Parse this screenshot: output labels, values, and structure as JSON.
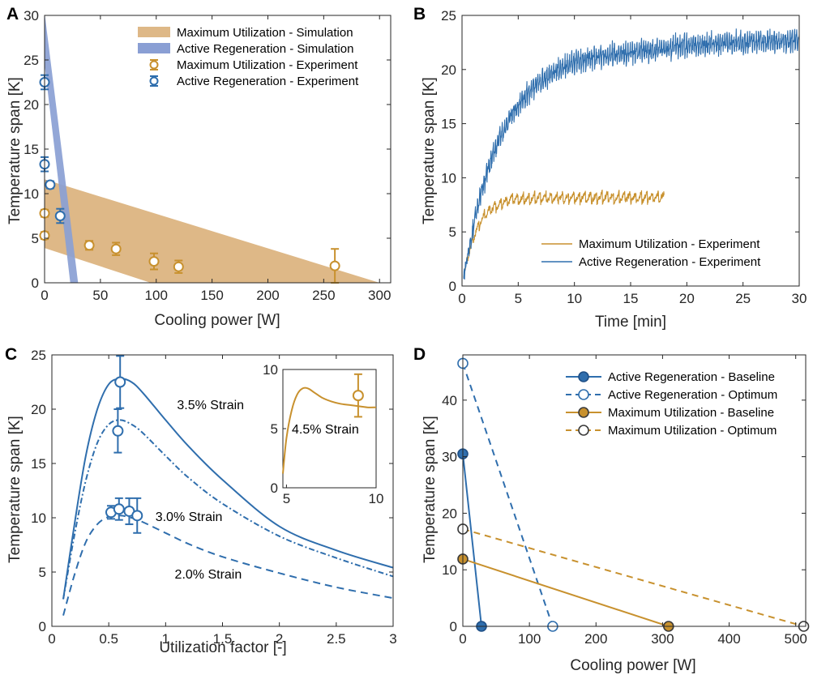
{
  "colors": {
    "blue": "#2f6ead",
    "orange": "#c8912e",
    "fill_orange": "#deb887",
    "fill_blue": "#8a9fd4",
    "dark_marker": "#3a3a3a"
  },
  "chart_data": [
    {
      "id": "A",
      "panel_label": "A",
      "type": "scatter",
      "xlabel": "Cooling power [W]",
      "ylabel": "Temperature span [K]",
      "xlim": [
        0,
        310
      ],
      "ylim": [
        0,
        30
      ],
      "xticks": [
        0,
        50,
        100,
        150,
        200,
        250,
        300
      ],
      "yticks": [
        0,
        5,
        10,
        15,
        20,
        25,
        30
      ],
      "bands": [
        {
          "name": "Maximum Utilization - Simulation",
          "color": "fill_orange",
          "polygon": [
            [
              0,
              11.6
            ],
            [
              0,
              3.9
            ],
            [
              95,
              0
            ],
            [
              300,
              0
            ]
          ]
        },
        {
          "name": "Active Regeneration - Simulation",
          "color": "fill_blue",
          "polygon": [
            [
              0,
              30.3
            ],
            [
              0,
              24.5
            ],
            [
              23,
              0
            ],
            [
              30,
              0
            ]
          ]
        }
      ],
      "series": [
        {
          "name": "Maximum Utilization - Experiment",
          "color": "orange",
          "points": [
            [
              0,
              7.8,
              0.4
            ],
            [
              0,
              5.3,
              0.4
            ],
            [
              40,
              4.2,
              0.5
            ],
            [
              64,
              3.8,
              0.7
            ],
            [
              98,
              2.4,
              0.9
            ],
            [
              120,
              1.8,
              0.7
            ],
            [
              260,
              1.9,
              1.9
            ]
          ]
        },
        {
          "name": "Active Regeneration - Experiment",
          "color": "blue",
          "points": [
            [
              0,
              22.5,
              0.8
            ],
            [
              0,
              13.3,
              0.8
            ],
            [
              5,
              11.0,
              0.4
            ],
            [
              14,
              7.5,
              0.8
            ]
          ]
        }
      ],
      "legend": [
        "Maximum Utilization - Simulation",
        "Active Regeneration - Simulation",
        "Maximum Utilization - Experiment",
        "Active Regeneration - Experiment"
      ],
      "legend_position": "top-right"
    },
    {
      "id": "B",
      "panel_label": "B",
      "type": "line",
      "xlabel": "Time [min]",
      "ylabel": "Temperature span [K]",
      "xlim": [
        0,
        30
      ],
      "ylim": [
        0,
        25
      ],
      "xticks": [
        0,
        5,
        10,
        15,
        20,
        25,
        30
      ],
      "yticks": [
        0,
        5,
        10,
        15,
        20,
        25
      ],
      "series": [
        {
          "name": "Maximum Utilization - Experiment",
          "color": "orange",
          "t_end": 18,
          "plateau": 8.2,
          "tau": 1.3,
          "osc_amp": 1.0,
          "osc_period": 0.5
        },
        {
          "name": "Active Regeneration - Experiment",
          "color": "blue",
          "t_end": 30,
          "plateau": 22.0,
          "tau": 3.5,
          "osc_amp": 1.9,
          "osc_period": 0.2
        }
      ],
      "legend": [
        "Maximum Utilization - Experiment",
        "Active Regeneration - Experiment"
      ],
      "legend_position": "bottom-right"
    },
    {
      "id": "C",
      "panel_label": "C",
      "type": "line",
      "xlabel": "Utilization factor [-]",
      "ylabel": "Temperature span [K]",
      "xlim": [
        0,
        3
      ],
      "ylim": [
        0,
        25
      ],
      "xticks": [
        0,
        0.5,
        1,
        1.5,
        2,
        2.5,
        3
      ],
      "xtick_labels": [
        "0",
        "0.5",
        "1",
        "1.5",
        "2",
        "2.5",
        "3"
      ],
      "yticks": [
        0,
        5,
        10,
        15,
        20,
        25
      ],
      "series": [
        {
          "name": "3.5% Strain",
          "color": "blue",
          "style": "solid",
          "x": [
            0.1,
            0.2,
            0.3,
            0.4,
            0.5,
            0.6,
            0.7,
            0.8,
            1.0,
            1.2,
            1.5,
            2.0,
            2.5,
            3.0
          ],
          "y": [
            2.5,
            9.5,
            15.8,
            20.0,
            22.3,
            22.8,
            22.5,
            21.5,
            19.0,
            16.6,
            13.5,
            9.2,
            7.0,
            5.4
          ]
        },
        {
          "name": "3.0% Strain",
          "color": "blue",
          "style": "dashdot",
          "x": [
            0.1,
            0.2,
            0.3,
            0.4,
            0.5,
            0.6,
            0.7,
            0.8,
            1.0,
            1.2,
            1.5,
            2.0,
            2.5,
            3.0
          ],
          "y": [
            2.5,
            8.5,
            13.5,
            16.9,
            18.6,
            19.0,
            18.6,
            17.8,
            15.7,
            13.7,
            11.3,
            8.3,
            6.3,
            4.6
          ]
        },
        {
          "name": "2.0% Strain",
          "color": "blue",
          "style": "dashed",
          "x": [
            0.1,
            0.2,
            0.3,
            0.4,
            0.5,
            0.6,
            0.7,
            0.8,
            1.0,
            1.2,
            1.5,
            2.0,
            2.5,
            3.0
          ],
          "y": [
            1.0,
            4.8,
            7.8,
            9.4,
            10.1,
            10.2,
            10.0,
            9.6,
            8.6,
            7.6,
            6.4,
            4.9,
            3.6,
            2.6
          ]
        }
      ],
      "errorbars": [
        [
          0.6,
          22.5,
          2.4
        ],
        [
          0.58,
          18.0,
          2.0
        ],
        [
          0.52,
          10.5,
          0.6
        ],
        [
          0.59,
          10.8,
          1.0
        ],
        [
          0.68,
          10.6,
          1.2
        ],
        [
          0.75,
          10.2,
          1.6
        ]
      ],
      "annotations": [
        {
          "text": "3.5% Strain",
          "x": 1.1,
          "y": 20.0
        },
        {
          "text": "3.0% Strain",
          "x": 0.91,
          "y": 9.7
        },
        {
          "text": "2.0% Strain",
          "x": 1.08,
          "y": 4.4
        }
      ],
      "inset": {
        "series_color": "orange",
        "label": "4.5% Strain",
        "xlim": [
          4.8,
          10
        ],
        "ylim": [
          0,
          10
        ],
        "xticks": [
          5,
          10
        ],
        "yticks": [
          0,
          5,
          10
        ],
        "x": [
          4.8,
          5.0,
          5.3,
          5.6,
          5.9,
          6.2,
          6.6,
          7.0,
          7.5,
          8.0,
          8.5,
          9.0,
          9.5,
          10.0
        ],
        "y": [
          1.2,
          4.2,
          6.6,
          7.9,
          8.4,
          8.4,
          8.0,
          7.6,
          7.3,
          7.1,
          7.0,
          6.9,
          6.8,
          6.8
        ],
        "point": [
          9.0,
          7.8,
          1.8
        ]
      }
    },
    {
      "id": "D",
      "panel_label": "D",
      "type": "line",
      "xlabel": "Cooling power [W]",
      "ylabel": "Temperature span [K]",
      "xlim": [
        0,
        515
      ],
      "ylim": [
        0,
        48
      ],
      "xticks": [
        0,
        100,
        200,
        300,
        400,
        500
      ],
      "yticks": [
        0,
        10,
        20,
        30,
        40
      ],
      "series": [
        {
          "name": "Active Regeneration - Baseline",
          "color": "blue",
          "style": "solid",
          "filled": true,
          "points": [
            [
              0,
              30.5
            ],
            [
              28,
              0
            ]
          ]
        },
        {
          "name": "Active Regeneration - Optimum",
          "color": "blue",
          "style": "dashed",
          "filled": false,
          "points": [
            [
              0,
              46.5
            ],
            [
              135,
              0
            ]
          ]
        },
        {
          "name": "Maximum Utilization - Baseline",
          "color": "orange",
          "style": "solid",
          "filled": true,
          "points": [
            [
              0,
              11.9
            ],
            [
              309,
              0
            ]
          ]
        },
        {
          "name": "Maximum Utilization - Optimum",
          "color": "orange",
          "style": "dashed",
          "filled": false,
          "points": [
            [
              0,
              17.2
            ],
            [
              512,
              0
            ]
          ]
        }
      ],
      "legend": [
        "Active Regeneration - Baseline",
        "Active Regeneration - Optimum",
        "Maximum Utilization - Baseline",
        "Maximum Utilization - Optimum"
      ],
      "legend_position": "top-right"
    }
  ]
}
